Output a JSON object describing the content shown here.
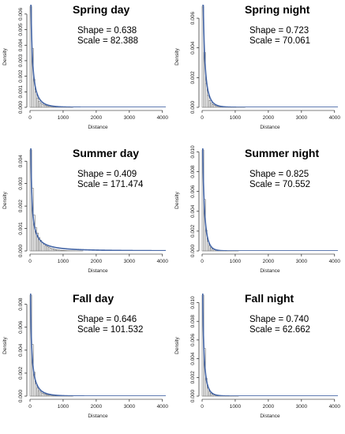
{
  "figure": {
    "series_color": "#4a6aa8"
  },
  "chart_data": [
    {
      "type": "bar",
      "title": "Spring day",
      "shape_text": "Shape = 0.638",
      "scale_text": "Scale = 82.388",
      "shape": 0.638,
      "scale": 82.388,
      "xlabel": "Distance",
      "ylabel": "Density",
      "xlim": [
        0,
        4100
      ],
      "ylim": [
        0,
        0.0065
      ],
      "x_ticks": [
        0,
        1000,
        2000,
        3000,
        4000
      ],
      "y_ticks": [
        0,
        0.001,
        0.002,
        0.003,
        0.004,
        0.005,
        0.006
      ],
      "y_tick_labels": [
        "0.000",
        "0.001",
        "0.002",
        "0.003",
        "0.004",
        "0.005",
        "0.006"
      ],
      "bin_width": 50,
      "hist_values": [
        0.0065,
        0.0038,
        0.0018,
        0.001,
        0.0006,
        0.00038,
        0.00027,
        0.0002,
        0.00015,
        0.00012,
        0.0001,
        8e-05,
        6e-05,
        5e-05,
        4e-05,
        3e-05,
        2.5e-05,
        2e-05,
        1.5e-05,
        1e-05,
        1e-05,
        8e-06,
        6e-06,
        5e-06,
        4e-06,
        3e-06
      ]
    },
    {
      "type": "bar",
      "title": "Spring night",
      "shape_text": "Shape = 0.723",
      "scale_text": "Scale = 70.061",
      "shape": 0.723,
      "scale": 70.061,
      "xlabel": "Distance",
      "ylabel": "Density",
      "xlim": [
        0,
        4100
      ],
      "ylim": [
        0,
        0.0068
      ],
      "x_ticks": [
        0,
        1000,
        2000,
        3000,
        4000
      ],
      "y_ticks": [
        0,
        0.002,
        0.004,
        0.006
      ],
      "y_tick_labels": [
        "0.000",
        "0.002",
        "0.004",
        "0.006"
      ],
      "bin_width": 50,
      "hist_values": [
        0.0068,
        0.0037,
        0.0016,
        0.0008,
        0.00045,
        0.00028,
        0.00019,
        0.00014,
        0.0001,
        8e-05,
        6e-05,
        5e-05,
        4e-05,
        3e-05,
        2.5e-05,
        2e-05,
        1.5e-05,
        1e-05,
        8e-06,
        6e-06,
        5e-06,
        4e-06,
        3e-06,
        2e-06,
        2e-06,
        1e-06
      ]
    },
    {
      "type": "bar",
      "title": "Summer day",
      "shape_text": "Shape = 0.409",
      "scale_text": "Scale = 171.474",
      "shape": 0.409,
      "scale": 171.474,
      "xlabel": "Distance",
      "ylabel": "Density",
      "xlim": [
        0,
        4100
      ],
      "ylim": [
        0,
        0.0045
      ],
      "x_ticks": [
        0,
        1000,
        2000,
        3000,
        4000
      ],
      "y_ticks": [
        0,
        0.001,
        0.002,
        0.003,
        0.004
      ],
      "y_tick_labels": [
        "0.000",
        "0.001",
        "0.002",
        "0.003",
        "0.004"
      ],
      "bin_width": 50,
      "hist_values": [
        0.0045,
        0.0028,
        0.0016,
        0.00105,
        0.0008,
        0.0006,
        0.00047,
        0.00037,
        0.0003,
        0.00024,
        0.00019,
        0.00015,
        0.00012,
        0.0001,
        8e-05,
        6e-05,
        5e-05,
        4e-05,
        3e-05,
        2.5e-05,
        2e-05,
        1.5e-05,
        1e-05,
        8e-06,
        6e-06,
        5e-06,
        4e-06,
        3e-06,
        2e-06,
        2e-06,
        1e-06,
        1e-06
      ]
    },
    {
      "type": "bar",
      "title": "Summer night",
      "shape_text": "Shape = 0.825",
      "scale_text": "Scale = 70.552",
      "shape": 0.825,
      "scale": 70.552,
      "xlabel": "Distance",
      "ylabel": "Density",
      "xlim": [
        0,
        4100
      ],
      "ylim": [
        0,
        0.0102
      ],
      "x_ticks": [
        0,
        1000,
        2000,
        3000,
        4000
      ],
      "y_ticks": [
        0,
        0.002,
        0.004,
        0.006,
        0.008,
        0.01
      ],
      "y_tick_labels": [
        "0.000",
        "0.002",
        "0.004",
        "0.006",
        "0.008",
        "0.010"
      ],
      "bin_width": 50,
      "hist_values": [
        0.0102,
        0.0052,
        0.0021,
        0.001,
        0.00055,
        0.00032,
        0.0002,
        0.00013,
        9e-05,
        6e-05,
        4e-05,
        3e-05,
        2e-05,
        1.5e-05,
        1e-05,
        8e-06,
        6e-06,
        4e-06,
        3e-06,
        2e-06,
        2e-06,
        1e-06
      ]
    },
    {
      "type": "bar",
      "title": "Fall day",
      "shape_text": "Shape = 0.646",
      "scale_text": "Scale = 101.532",
      "shape": 0.646,
      "scale": 101.532,
      "xlabel": "Distance",
      "ylabel": "Density",
      "xlim": [
        0,
        4100
      ],
      "ylim": [
        0,
        0.0088
      ],
      "x_ticks": [
        0,
        1000,
        2000,
        3000,
        4000
      ],
      "y_ticks": [
        0,
        0.002,
        0.004,
        0.006,
        0.008
      ],
      "y_tick_labels": [
        "0.000",
        "0.002",
        "0.004",
        "0.006",
        "0.008"
      ],
      "bin_width": 50,
      "hist_values": [
        0.0088,
        0.0045,
        0.0021,
        0.0011,
        0.0007,
        0.00048,
        0.00035,
        0.00026,
        0.0002,
        0.00015,
        0.00012,
        0.0001,
        8e-05,
        6e-05,
        5e-05,
        4e-05,
        3e-05,
        2.5e-05,
        2e-05,
        1.5e-05,
        1e-05,
        8e-06,
        6e-06,
        5e-06,
        4e-06,
        3e-06
      ]
    },
    {
      "type": "bar",
      "title": "Fall night",
      "shape_text": "Shape = 0.740",
      "scale_text": "Scale = 62.662",
      "shape": 0.74,
      "scale": 62.662,
      "xlabel": "Distance",
      "ylabel": "Density",
      "xlim": [
        0,
        4100
      ],
      "ylim": [
        0,
        0.0108
      ],
      "x_ticks": [
        0,
        1000,
        2000,
        3000,
        4000
      ],
      "y_ticks": [
        0,
        0.002,
        0.004,
        0.006,
        0.008,
        0.01
      ],
      "y_tick_labels": [
        "0.000",
        "0.002",
        "0.004",
        "0.006",
        "0.008",
        "0.010"
      ],
      "bin_width": 50,
      "hist_values": [
        0.0108,
        0.0051,
        0.0019,
        0.0009,
        0.0005,
        0.0003,
        0.00019,
        0.00012,
        8e-05,
        6e-05,
        4e-05,
        3e-05,
        2e-05,
        1.5e-05,
        1e-05,
        8e-06,
        6e-06,
        4e-06,
        3e-06,
        2e-06,
        2e-06,
        1e-06
      ]
    }
  ]
}
